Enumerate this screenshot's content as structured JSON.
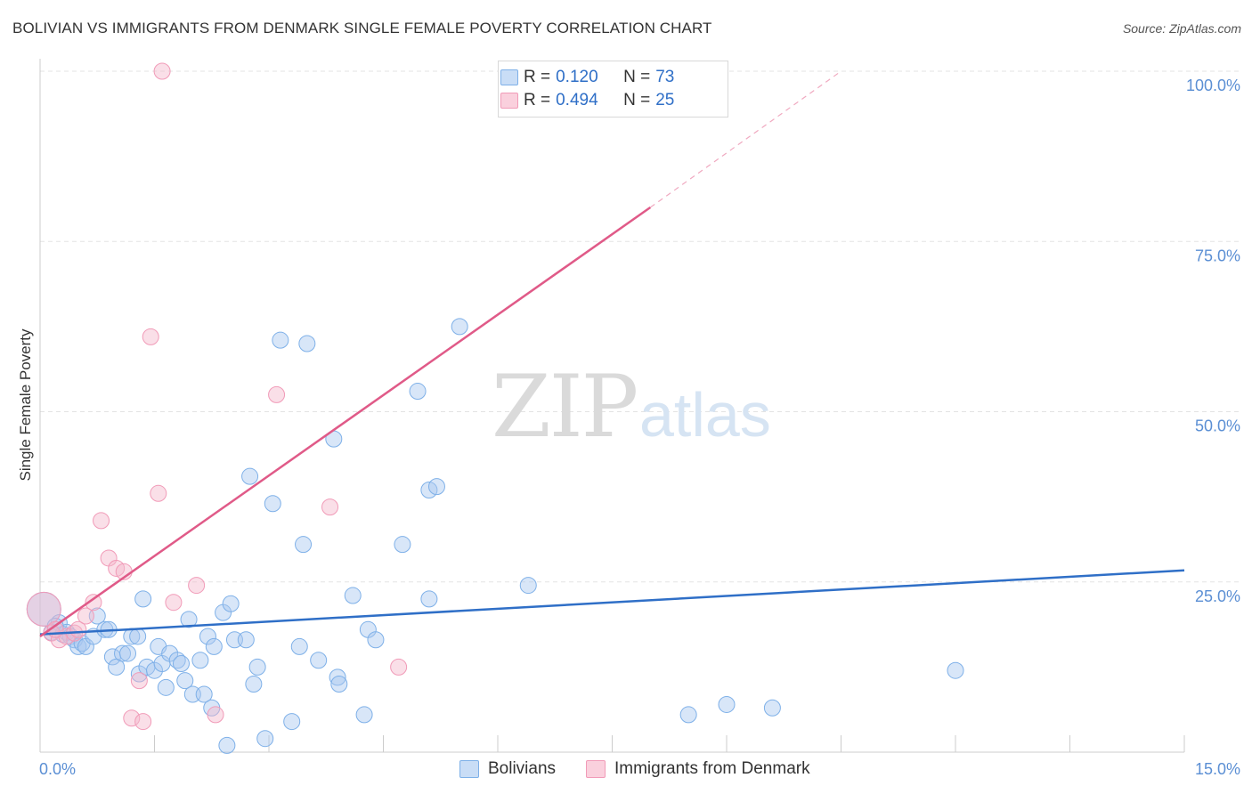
{
  "title": "BOLIVIAN VS IMMIGRANTS FROM DENMARK SINGLE FEMALE POVERTY CORRELATION CHART",
  "source": "Source: ZipAtlas.com",
  "watermark": {
    "zip": "ZIP",
    "atlas": "atlas"
  },
  "legend": {
    "rows": [
      {
        "r_label": "R =",
        "r_value": "0.120",
        "n_label": "N =",
        "n_value": "73",
        "color": "#a9c8ef"
      },
      {
        "r_label": "R =",
        "r_value": "0.494",
        "n_label": "N =",
        "n_value": "25",
        "color": "#f4b8cb"
      }
    ]
  },
  "bottom_legend": [
    {
      "label": "Bolivians",
      "color": "#a9c8ef"
    },
    {
      "label": "Immigrants from Denmark",
      "color": "#f4b8cb"
    }
  ],
  "chart_data": {
    "type": "scatter",
    "title": "BOLIVIAN VS IMMIGRANTS FROM DENMARK SINGLE FEMALE POVERTY CORRELATION CHART",
    "xlabel": "",
    "ylabel": "Single Female Poverty",
    "xlim": [
      0,
      15
    ],
    "ylim": [
      0,
      100
    ],
    "x_tick_labels": [
      "0.0%",
      "15.0%"
    ],
    "y_ticks": [
      25,
      50,
      75,
      100
    ],
    "y_tick_labels": [
      "25.0%",
      "50.0%",
      "75.0%",
      "100.0%"
    ],
    "grid": true,
    "legend_position": "top-center",
    "series": [
      {
        "name": "Bolivians",
        "color": "#7eb0e8",
        "trend": {
          "x": [
            0,
            15
          ],
          "y": [
            17.3,
            26.7
          ],
          "color": "#2f6fc7"
        },
        "points": [
          {
            "x": 0.05,
            "y": 21.0,
            "size": "large"
          },
          {
            "x": 0.15,
            "y": 17.6
          },
          {
            "x": 0.25,
            "y": 19.0
          },
          {
            "x": 0.3,
            "y": 17.3
          },
          {
            "x": 0.35,
            "y": 17.6
          },
          {
            "x": 0.4,
            "y": 17.0
          },
          {
            "x": 0.45,
            "y": 16.5
          },
          {
            "x": 0.5,
            "y": 15.5
          },
          {
            "x": 0.55,
            "y": 16.0
          },
          {
            "x": 0.6,
            "y": 15.5
          },
          {
            "x": 0.7,
            "y": 17.0
          },
          {
            "x": 0.75,
            "y": 20.0
          },
          {
            "x": 0.85,
            "y": 18.0
          },
          {
            "x": 0.9,
            "y": 18.0
          },
          {
            "x": 0.95,
            "y": 14.0
          },
          {
            "x": 1.0,
            "y": 12.5
          },
          {
            "x": 1.08,
            "y": 14.5
          },
          {
            "x": 1.15,
            "y": 14.5
          },
          {
            "x": 1.2,
            "y": 17.0
          },
          {
            "x": 1.28,
            "y": 17.0
          },
          {
            "x": 1.3,
            "y": 11.5
          },
          {
            "x": 1.35,
            "y": 22.5
          },
          {
            "x": 1.4,
            "y": 12.5
          },
          {
            "x": 1.5,
            "y": 12.0
          },
          {
            "x": 1.55,
            "y": 15.5
          },
          {
            "x": 1.6,
            "y": 13.0
          },
          {
            "x": 1.65,
            "y": 9.5
          },
          {
            "x": 1.7,
            "y": 14.5
          },
          {
            "x": 1.8,
            "y": 13.5
          },
          {
            "x": 1.85,
            "y": 13.0
          },
          {
            "x": 1.9,
            "y": 10.5
          },
          {
            "x": 1.95,
            "y": 19.5
          },
          {
            "x": 2.0,
            "y": 8.5
          },
          {
            "x": 2.1,
            "y": 13.5
          },
          {
            "x": 2.15,
            "y": 8.5
          },
          {
            "x": 2.2,
            "y": 17.0
          },
          {
            "x": 2.25,
            "y": 6.5
          },
          {
            "x": 2.28,
            "y": 15.5
          },
          {
            "x": 2.4,
            "y": 20.5
          },
          {
            "x": 2.45,
            "y": 1.0
          },
          {
            "x": 2.5,
            "y": 21.8
          },
          {
            "x": 2.55,
            "y": 16.5
          },
          {
            "x": 2.7,
            "y": 16.5
          },
          {
            "x": 2.75,
            "y": 40.5
          },
          {
            "x": 2.8,
            "y": 10.0
          },
          {
            "x": 2.85,
            "y": 12.5
          },
          {
            "x": 2.95,
            "y": 2.0
          },
          {
            "x": 3.05,
            "y": 36.5
          },
          {
            "x": 3.15,
            "y": 60.5
          },
          {
            "x": 3.3,
            "y": 4.5
          },
          {
            "x": 3.4,
            "y": 15.5
          },
          {
            "x": 3.45,
            "y": 30.5
          },
          {
            "x": 3.5,
            "y": 60.0
          },
          {
            "x": 3.65,
            "y": 13.5
          },
          {
            "x": 3.85,
            "y": 46.0
          },
          {
            "x": 3.9,
            "y": 11.0
          },
          {
            "x": 3.92,
            "y": 10.0
          },
          {
            "x": 4.1,
            "y": 23.0
          },
          {
            "x": 4.25,
            "y": 5.5
          },
          {
            "x": 4.3,
            "y": 18.0
          },
          {
            "x": 4.4,
            "y": 16.5
          },
          {
            "x": 4.75,
            "y": 30.5
          },
          {
            "x": 4.95,
            "y": 53.0
          },
          {
            "x": 5.1,
            "y": 22.5
          },
          {
            "x": 5.1,
            "y": 38.5
          },
          {
            "x": 5.2,
            "y": 39.0
          },
          {
            "x": 5.5,
            "y": 62.5
          },
          {
            "x": 6.4,
            "y": 24.5
          },
          {
            "x": 8.5,
            "y": 5.5
          },
          {
            "x": 9.0,
            "y": 7.0
          },
          {
            "x": 9.6,
            "y": 6.5
          },
          {
            "x": 12.0,
            "y": 12.0
          },
          {
            "x": 0.2,
            "y": 18.5
          }
        ]
      },
      {
        "name": "Immigrants from Denmark",
        "color": "#f19bb8",
        "trend": {
          "x": [
            0,
            8.0
          ],
          "y": [
            17.0,
            80.0
          ],
          "dashed_to": {
            "x": 10.5,
            "y": 100.0
          },
          "color": "#e05a88"
        },
        "points": [
          {
            "x": 0.05,
            "y": 21.0,
            "size": "large"
          },
          {
            "x": 0.15,
            "y": 17.5
          },
          {
            "x": 0.25,
            "y": 16.5
          },
          {
            "x": 0.35,
            "y": 17.0
          },
          {
            "x": 0.45,
            "y": 17.5
          },
          {
            "x": 0.5,
            "y": 18.0
          },
          {
            "x": 0.6,
            "y": 20.0
          },
          {
            "x": 0.7,
            "y": 22.0
          },
          {
            "x": 0.8,
            "y": 34.0
          },
          {
            "x": 0.9,
            "y": 28.5
          },
          {
            "x": 1.0,
            "y": 27.0
          },
          {
            "x": 1.1,
            "y": 26.5
          },
          {
            "x": 1.3,
            "y": 10.5
          },
          {
            "x": 1.2,
            "y": 5.0
          },
          {
            "x": 1.35,
            "y": 4.5
          },
          {
            "x": 1.45,
            "y": 61.0
          },
          {
            "x": 1.6,
            "y": 100.0
          },
          {
            "x": 1.55,
            "y": 38.0
          },
          {
            "x": 1.75,
            "y": 22.0
          },
          {
            "x": 2.05,
            "y": 24.5
          },
          {
            "x": 2.3,
            "y": 5.5
          },
          {
            "x": 3.1,
            "y": 52.5
          },
          {
            "x": 3.8,
            "y": 36.0
          },
          {
            "x": 4.7,
            "y": 12.5
          },
          {
            "x": 0.2,
            "y": 18.0
          }
        ]
      }
    ]
  }
}
